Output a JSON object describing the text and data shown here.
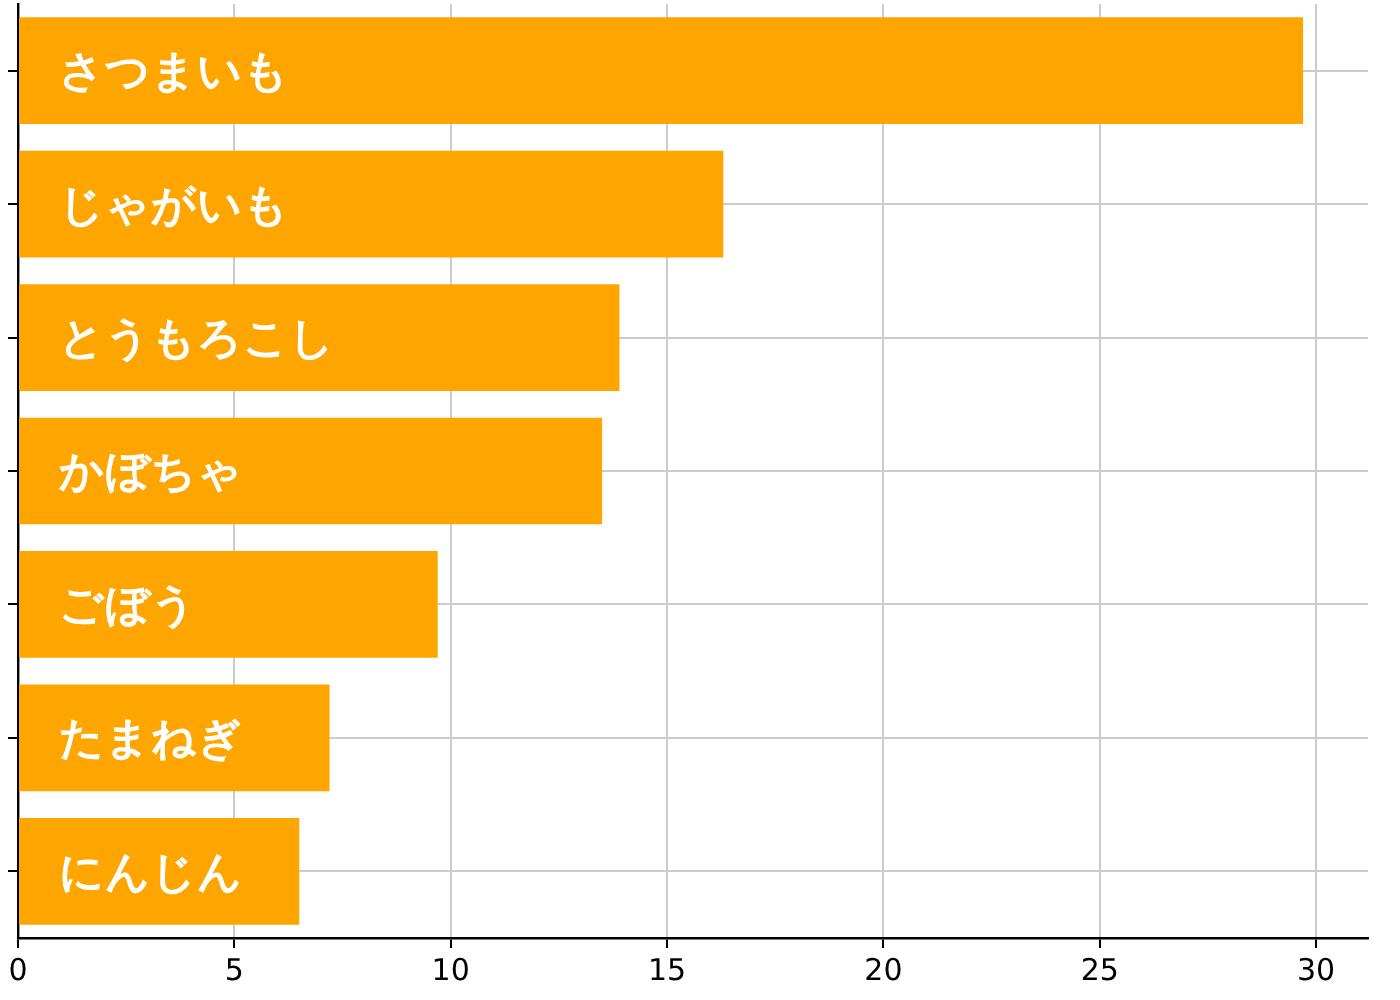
{
  "chart_data": {
    "type": "bar",
    "orientation": "horizontal",
    "categories": [
      "さつまいも",
      "じゃがいも",
      "とうもろこし",
      "かぼちゃ",
      "ごぼう",
      "たまねぎ",
      "にんじん"
    ],
    "values": [
      29.7,
      16.3,
      13.9,
      13.5,
      9.7,
      7.2,
      6.5
    ],
    "color": "#ffa500",
    "xlim": [
      0,
      31.2
    ],
    "xticks": [
      0,
      5,
      10,
      15,
      20,
      25,
      30
    ],
    "grid": true
  }
}
